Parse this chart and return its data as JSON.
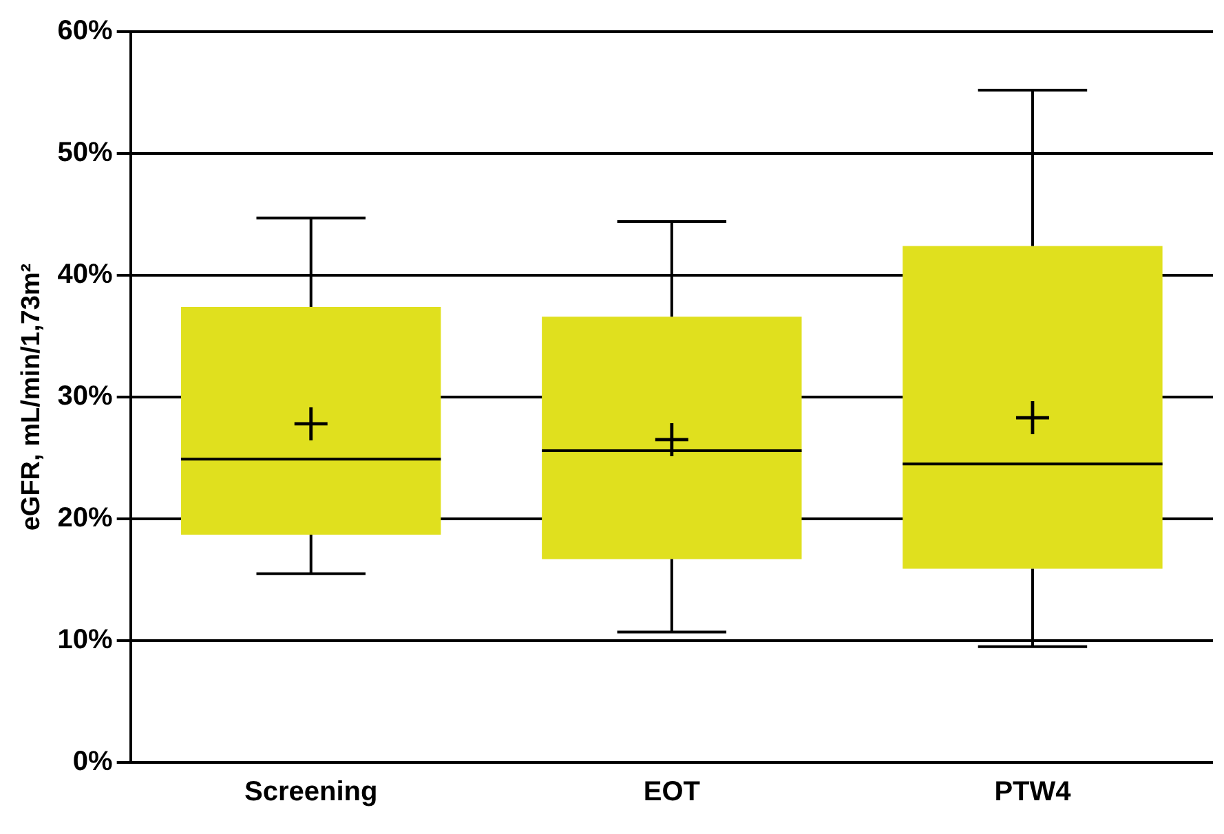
{
  "chart_data": {
    "type": "box",
    "categories": [
      "Screening",
      "EOT",
      "PTW4"
    ],
    "ylabel": "eGFR, mL/min/1,73m²",
    "color": "#e0e01e",
    "boxes": [
      {
        "low": 15.5,
        "q1": 18.7,
        "median": 24.9,
        "q3": 37.4,
        "high": 44.7,
        "mean": 27.8
      },
      {
        "low": 10.7,
        "q1": 16.7,
        "median": 25.6,
        "q3": 36.6,
        "high": 44.4,
        "mean": 26.5
      },
      {
        "low": 9.5,
        "q1": 15.9,
        "median": 24.5,
        "q3": 42.4,
        "high": 55.2,
        "mean": 28.3
      }
    ],
    "ylim": [
      0,
      60
    ],
    "yticks": [
      {
        "value": 0,
        "label": "0%"
      },
      {
        "value": 10,
        "label": "10%"
      },
      {
        "value": 20,
        "label": "20%"
      },
      {
        "value": 30,
        "label": "30%"
      },
      {
        "value": 40,
        "label": "40%"
      },
      {
        "value": 50,
        "label": "50%"
      },
      {
        "value": 60,
        "label": "60%"
      }
    ],
    "grid": "y",
    "marker": "cross"
  }
}
